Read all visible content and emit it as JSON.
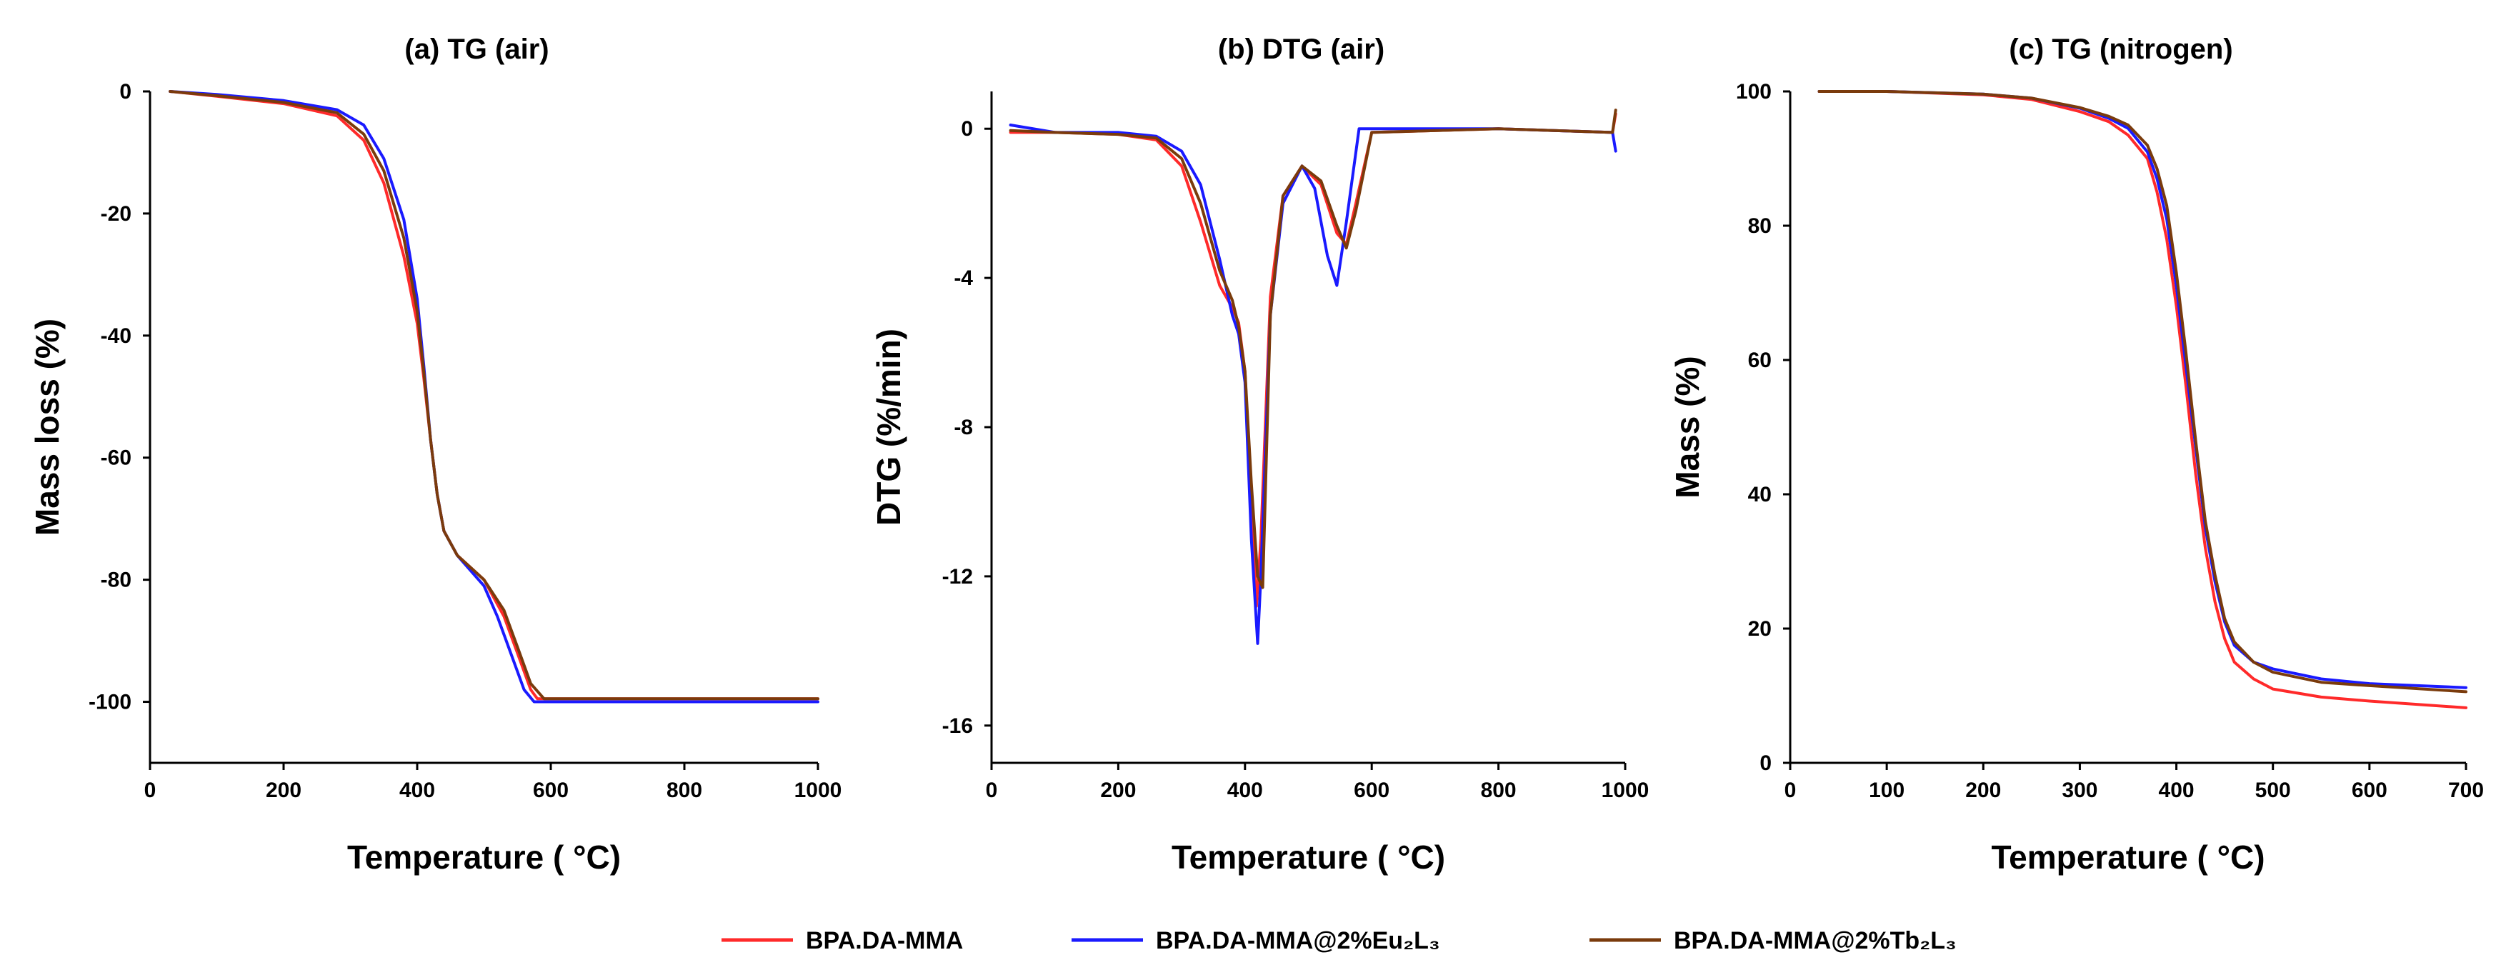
{
  "legend": [
    {
      "label": "BPA.DA-MMA",
      "color": "#ff2a2a"
    },
    {
      "label": "BPA.DA-MMA@2%Eu₂L₃",
      "color": "#1a1aff"
    },
    {
      "label": "BPA.DA-MMA@2%Tb₂L₃",
      "color": "#7a3b0c"
    }
  ],
  "chart_data": [
    {
      "id": "a",
      "type": "line",
      "title": "(a)  TG (air)",
      "xlabel": "Temperature ( °C)",
      "ylabel": "Mass loss (%)",
      "xlim": [
        0,
        1000
      ],
      "ylim": [
        -110,
        0
      ],
      "xticks": [
        0,
        200,
        400,
        600,
        800,
        1000
      ],
      "yticks": [
        0,
        -20,
        -40,
        -60,
        -80,
        -100
      ],
      "series": [
        {
          "name": "BPA.DA-MMA",
          "x": [
            30,
            100,
            200,
            280,
            320,
            350,
            380,
            400,
            410,
            420,
            430,
            440,
            460,
            500,
            530,
            550,
            570,
            580,
            1000
          ],
          "y": [
            0,
            -0.8,
            -2,
            -4,
            -8,
            -15,
            -27,
            -38,
            -47,
            -57,
            -66,
            -72,
            -76,
            -80,
            -86,
            -92,
            -98,
            -99.5,
            -99.5
          ]
        },
        {
          "name": "BPA.DA-MMA@2%Eu₂L₃",
          "x": [
            30,
            100,
            200,
            280,
            320,
            350,
            380,
            400,
            410,
            420,
            430,
            440,
            460,
            500,
            520,
            540,
            560,
            575,
            1000
          ],
          "y": [
            0,
            -0.5,
            -1.5,
            -3,
            -5.5,
            -11,
            -21,
            -34,
            -45,
            -57,
            -66,
            -72,
            -76,
            -81,
            -86,
            -92,
            -98,
            -100,
            -100
          ]
        },
        {
          "name": "BPA.DA-MMA@2%Tb₂L₃",
          "x": [
            30,
            100,
            200,
            280,
            320,
            350,
            380,
            400,
            410,
            420,
            430,
            440,
            460,
            500,
            530,
            550,
            570,
            590,
            1000
          ],
          "y": [
            0,
            -0.7,
            -1.8,
            -3.5,
            -7,
            -13,
            -24,
            -36,
            -46,
            -57,
            -66,
            -72,
            -76,
            -80,
            -85,
            -91,
            -97,
            -99.5,
            -99.5
          ]
        }
      ]
    },
    {
      "id": "b",
      "type": "line",
      "title": "(b)   DTG (air)",
      "xlabel": "Temperature ( °C)",
      "ylabel": "DTG (%/min)",
      "xlim": [
        0,
        1000
      ],
      "ylim": [
        -17,
        1
      ],
      "xticks": [
        0,
        200,
        400,
        600,
        800,
        1000
      ],
      "yticks": [
        0,
        -4,
        -8,
        -12,
        -16
      ],
      "series": [
        {
          "name": "BPA.DA-MMA",
          "x": [
            30,
            100,
            200,
            260,
            300,
            330,
            360,
            380,
            390,
            400,
            410,
            418,
            425,
            440,
            460,
            490,
            520,
            545,
            560,
            575,
            600,
            800,
            980,
            985
          ],
          "y": [
            -0.1,
            -0.1,
            -0.15,
            -0.3,
            -1,
            -2.5,
            -4.2,
            -4.8,
            -5.2,
            -6.5,
            -10,
            -12.8,
            -11,
            -4.5,
            -1.8,
            -1,
            -1.5,
            -2.8,
            -3.1,
            -2,
            -0.1,
            0,
            -0.1,
            0.4
          ]
        },
        {
          "name": "BPA.DA-MMA@2%Eu₂L₃",
          "x": [
            30,
            100,
            200,
            260,
            300,
            330,
            360,
            380,
            390,
            400,
            410,
            420,
            425,
            440,
            460,
            490,
            510,
            530,
            545,
            560,
            580,
            600,
            800,
            980,
            985
          ],
          "y": [
            0.1,
            -0.1,
            -0.1,
            -0.2,
            -0.6,
            -1.5,
            -3.5,
            -5,
            -5.5,
            -6.8,
            -11,
            -13.8,
            -12,
            -5,
            -2,
            -1,
            -1.6,
            -3.4,
            -4.2,
            -2.5,
            0,
            0,
            0,
            -0.1,
            -0.6
          ]
        },
        {
          "name": "BPA.DA-MMA@2%Tb₂L₃",
          "x": [
            30,
            100,
            200,
            260,
            300,
            330,
            360,
            380,
            390,
            400,
            410,
            420,
            428,
            440,
            460,
            490,
            520,
            545,
            560,
            575,
            600,
            800,
            980,
            985
          ],
          "y": [
            -0.05,
            -0.1,
            -0.15,
            -0.25,
            -0.8,
            -2,
            -3.8,
            -4.6,
            -5.3,
            -6.5,
            -9.5,
            -12,
            -12.3,
            -5,
            -1.8,
            -1,
            -1.4,
            -2.6,
            -3.2,
            -2.2,
            -0.1,
            0,
            -0.1,
            0.5
          ]
        }
      ]
    },
    {
      "id": "c",
      "type": "line",
      "title": "(c)   TG  (nitrogen)",
      "xlabel": "Temperature ( °C)",
      "ylabel": "Mass (%)",
      "xlim": [
        0,
        700
      ],
      "ylim": [
        0,
        100
      ],
      "xticks": [
        0,
        100,
        200,
        300,
        400,
        500,
        600,
        700
      ],
      "yticks": [
        0,
        20,
        40,
        60,
        80,
        100
      ],
      "series": [
        {
          "name": "BPA.DA-MMA",
          "x": [
            30,
            100,
            200,
            250,
            300,
            330,
            350,
            370,
            380,
            390,
            400,
            410,
            420,
            430,
            440,
            450,
            460,
            480,
            500,
            550,
            600,
            700
          ],
          "y": [
            100,
            100,
            99.5,
            98.8,
            97,
            95.5,
            93.5,
            90,
            85,
            78,
            68,
            56,
            43,
            32,
            24,
            18.5,
            15,
            12.5,
            11,
            9.8,
            9.2,
            8.2
          ]
        },
        {
          "name": "BPA.DA-MMA@2%Eu₂L₃",
          "x": [
            30,
            100,
            200,
            250,
            300,
            330,
            350,
            370,
            380,
            390,
            400,
            410,
            420,
            430,
            440,
            450,
            460,
            480,
            500,
            550,
            600,
            700
          ],
          "y": [
            100,
            100,
            99.6,
            99,
            97.5,
            96,
            94.5,
            91,
            87,
            81,
            71,
            59,
            47,
            35,
            27,
            21,
            17.5,
            15,
            14,
            12.5,
            11.8,
            11.2
          ]
        },
        {
          "name": "BPA.DA-MMA@2%Tb₂L₃",
          "x": [
            30,
            100,
            200,
            250,
            300,
            330,
            350,
            370,
            380,
            390,
            400,
            410,
            420,
            430,
            440,
            450,
            460,
            480,
            500,
            550,
            600,
            700
          ],
          "y": [
            100,
            100,
            99.6,
            99,
            97.6,
            96.3,
            95,
            92,
            88.5,
            83,
            73,
            61,
            48,
            36,
            28,
            21.5,
            18,
            15,
            13.5,
            12,
            11.5,
            10.6
          ]
        }
      ]
    }
  ]
}
